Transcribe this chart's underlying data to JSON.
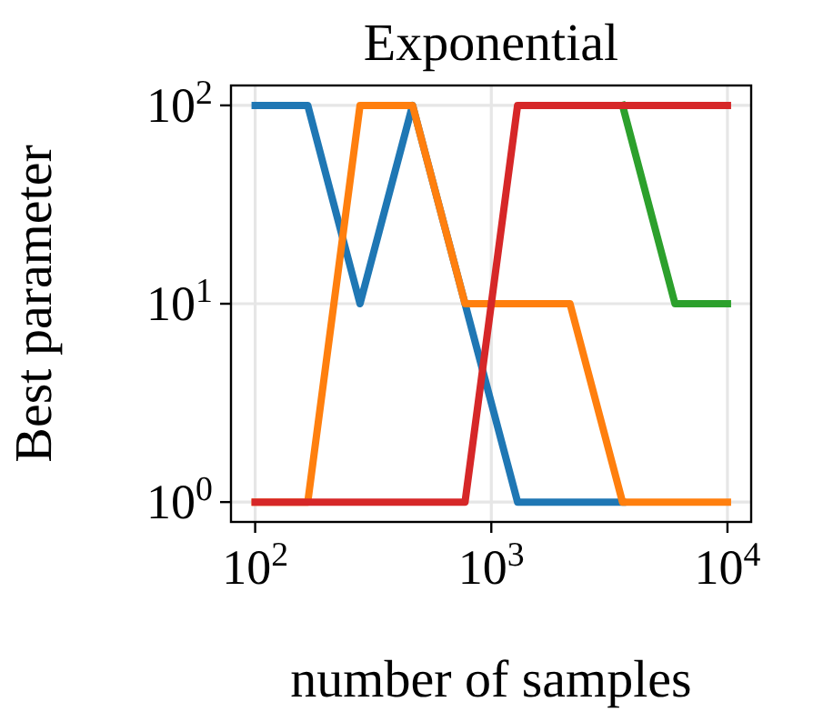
{
  "chart_data": {
    "type": "line",
    "title": "Exponential",
    "xlabel": "number of samples",
    "ylabel": "Best parameter",
    "log": "xy",
    "grid": true,
    "x": [
      100,
      167,
      278,
      464,
      774,
      1292,
      2154,
      3594,
      5995,
      10000
    ],
    "xlim": [
      79,
      12600
    ],
    "ylim": [
      0.794,
      126
    ],
    "xticks": [
      {
        "value": 100,
        "label": "10$^{2}$"
      },
      {
        "value": 1000,
        "label": "10$^{3}$"
      },
      {
        "value": 10000,
        "label": "10$^{4}$"
      }
    ],
    "yticks": [
      {
        "value": 1,
        "label": "10$^{0}$"
      },
      {
        "value": 10,
        "label": "10$^{1}$"
      },
      {
        "value": 100,
        "label": "10$^{2}$"
      }
    ],
    "series": [
      {
        "color": "#1f77b4",
        "values": [
          100,
          100,
          10,
          100,
          10,
          1,
          1,
          1,
          null,
          null
        ]
      },
      {
        "color": "#ff7f0e",
        "values": [
          1,
          1,
          100,
          100,
          10,
          10,
          10,
          1,
          1,
          1
        ]
      },
      {
        "color": "#2ca02c",
        "values": [
          null,
          null,
          null,
          null,
          null,
          null,
          null,
          100,
          10,
          10
        ]
      },
      {
        "color": "#d62728",
        "values": [
          1,
          1,
          1,
          1,
          1,
          100,
          100,
          100,
          100,
          100
        ]
      }
    ]
  }
}
